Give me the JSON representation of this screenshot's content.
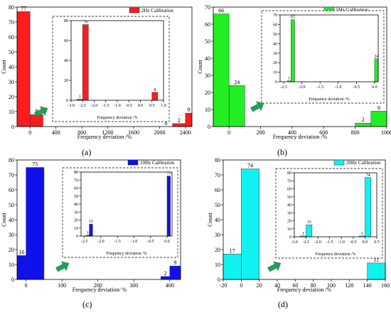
{
  "colors": {
    "red": "#ff1c1c",
    "green": "#22ee22",
    "blue": "#1010ee",
    "cyan": "#10f2f2",
    "arrow": "#22a055"
  },
  "chart_data": [
    {
      "type": "histogram",
      "panel_label": "(a)",
      "legend": "2Hz Calibration",
      "xlabel": "Frequency deviation /%",
      "ylabel": "Count",
      "xlim": [
        -200,
        2500
      ],
      "ylim": [
        0,
        80
      ],
      "xticks": [
        0,
        400,
        800,
        1200,
        1600,
        2000,
        2400
      ],
      "yticks": [
        0,
        10,
        20,
        30,
        40,
        50,
        60,
        70,
        80
      ],
      "bars": [
        {
          "x0": -200,
          "x1": 0,
          "value": 77,
          "label": "77"
        },
        {
          "x0": 0,
          "x1": 200,
          "value": 8,
          "label": "8"
        },
        {
          "x0": 2000,
          "x1": 2200,
          "value": 0,
          "label": "0"
        },
        {
          "x0": 2200,
          "x1": 2400,
          "value": 2,
          "label": "2"
        },
        {
          "x0": 2400,
          "x1": 2600,
          "value": 9,
          "label": "9"
        }
      ],
      "inset": {
        "xlabel": "Frequency deviation /%",
        "xlim": [
          -3.0,
          1.0
        ],
        "ylim": [
          0,
          80
        ],
        "xticks": [
          -3.0,
          -2.5,
          -2.0,
          -1.5,
          -1.0,
          -0.5,
          0.0,
          0.5,
          1.0
        ],
        "xtick_labels": [
          "-3.0",
          "-2.5",
          "-2.0",
          "-1.5",
          "-1.0",
          "-0.5",
          "0.0",
          "0.5",
          "1.0"
        ],
        "yticks": [
          0,
          20,
          40,
          60,
          80
        ],
        "bars": [
          {
            "x0": -2.75,
            "x1": -2.5,
            "value": 1,
            "label": "1"
          },
          {
            "x0": -2.5,
            "x1": -2.25,
            "value": 76,
            "label": "76"
          },
          {
            "x0": 0.5,
            "x1": 0.75,
            "value": 8,
            "label": "8"
          }
        ]
      }
    },
    {
      "type": "histogram",
      "panel_label": "(b)",
      "legend": "5Hz Calibration",
      "xlabel": "Frequency deviation /%",
      "ylabel": "Count",
      "xlim": [
        -100,
        1000
      ],
      "ylim": [
        0,
        70
      ],
      "xticks": [
        0,
        200,
        400,
        600,
        800,
        1000
      ],
      "yticks": [
        0,
        10,
        20,
        30,
        40,
        50,
        60,
        70
      ],
      "bars": [
        {
          "x0": -100,
          "x1": 0,
          "value": 66,
          "label": "66"
        },
        {
          "x0": 0,
          "x1": 100,
          "value": 24,
          "label": "24"
        },
        {
          "x0": 800,
          "x1": 900,
          "value": 2,
          "label": "2"
        },
        {
          "x0": 900,
          "x1": 1000,
          "value": 9,
          "label": "9"
        }
      ],
      "inset": {
        "xlabel": "Frequency deviation /%",
        "xlim": [
          -2.6,
          0.1
        ],
        "ylim": [
          0,
          70
        ],
        "xticks": [
          -2.5,
          -2.0,
          -1.5,
          -1.0,
          -0.5,
          0.0
        ],
        "xtick_labels": [
          "-2.5",
          "-2.0",
          "-1.5",
          "-1.0",
          "-0.5",
          "0.0"
        ],
        "yticks": [
          0,
          10,
          20,
          30,
          40,
          50,
          60,
          70
        ],
        "bars": [
          {
            "x0": -2.4,
            "x1": -2.3,
            "value": 1,
            "label": "1"
          },
          {
            "x0": -2.3,
            "x1": -2.2,
            "value": 65,
            "label": "65"
          },
          {
            "x0": 0.0,
            "x1": 0.1,
            "value": 24,
            "label": "24"
          }
        ]
      }
    },
    {
      "type": "histogram",
      "panel_label": "(c)",
      "legend": "10Hz Calibration",
      "xlabel": "Frequency deviation/ %",
      "ylabel": "Count",
      "xlim": [
        -25,
        430
      ],
      "ylim": [
        0,
        80
      ],
      "xticks": [
        0,
        100,
        200,
        300,
        400
      ],
      "yticks": [
        0,
        10,
        20,
        30,
        40,
        50,
        60,
        70,
        80
      ],
      "bars": [
        {
          "x0": -25,
          "x1": 0,
          "value": 16,
          "label": "16"
        },
        {
          "x0": 0,
          "x1": 50,
          "value": 75,
          "label": "75"
        },
        {
          "x0": 375,
          "x1": 400,
          "value": 2,
          "label": "2"
        },
        {
          "x0": 400,
          "x1": 430,
          "value": 9,
          "label": "9"
        }
      ],
      "inset": {
        "xlabel": "Frequency deviation /%",
        "xlim": [
          -2.6,
          0.15
        ],
        "ylim": [
          0,
          80
        ],
        "xticks": [
          -2.5,
          -2.0,
          -1.5,
          -1.0,
          -0.5,
          0.0
        ],
        "xtick_labels": [
          "-2.5",
          "-2.0",
          "-1.5",
          "-1.0",
          "-0.5",
          "0.0"
        ],
        "yticks": [
          0,
          10,
          20,
          30,
          40,
          50,
          60,
          70,
          80
        ],
        "bars": [
          {
            "x0": -2.45,
            "x1": -2.35,
            "value": 1,
            "label": "1"
          },
          {
            "x0": -2.35,
            "x1": -2.25,
            "value": 15,
            "label": "15"
          },
          {
            "x0": 0.0,
            "x1": 0.1,
            "value": 75,
            "label": "75"
          }
        ]
      }
    },
    {
      "type": "histogram",
      "panel_label": "(d)",
      "legend": "20Hz Calibration",
      "xlabel": "Frequency deviation /%",
      "ylabel": "Count",
      "xlim": [
        -20,
        160
      ],
      "ylim": [
        0,
        80
      ],
      "xticks": [
        -20,
        0,
        20,
        40,
        60,
        80,
        100,
        120,
        140,
        160
      ],
      "yticks": [
        0,
        10,
        20,
        30,
        40,
        50,
        60,
        70,
        80
      ],
      "bars": [
        {
          "x0": -20,
          "x1": 0,
          "value": 17,
          "label": "17"
        },
        {
          "x0": 0,
          "x1": 20,
          "value": 74,
          "label": "74"
        },
        {
          "x0": 140,
          "x1": 160,
          "value": 11,
          "label": "11"
        }
      ],
      "inset": {
        "xlabel": "Frequency deviation /%",
        "xlim": [
          -3.0,
          0.5
        ],
        "ylim": [
          0,
          80
        ],
        "xticks": [
          -3.0,
          -2.5,
          -2.0,
          -1.5,
          -1.0,
          -0.5,
          0.0,
          0.5
        ],
        "xtick_labels": [
          "-3.0",
          "-2.5",
          "-2.0",
          "-1.5",
          "-1.0",
          "-0.5",
          "0.0",
          "0.5"
        ],
        "yticks": [
          0,
          10,
          20,
          30,
          40,
          50,
          60,
          70,
          80
        ],
        "bars": [
          {
            "x0": -2.75,
            "x1": -2.5,
            "value": 1,
            "label": "1"
          },
          {
            "x0": -2.5,
            "x1": -2.25,
            "value": 15,
            "label": "15"
          },
          {
            "x0": -0.25,
            "x1": 0.0,
            "value": 1,
            "label": "1"
          },
          {
            "x0": 0.0,
            "x1": 0.25,
            "value": 74,
            "label": "74"
          }
        ]
      }
    }
  ]
}
